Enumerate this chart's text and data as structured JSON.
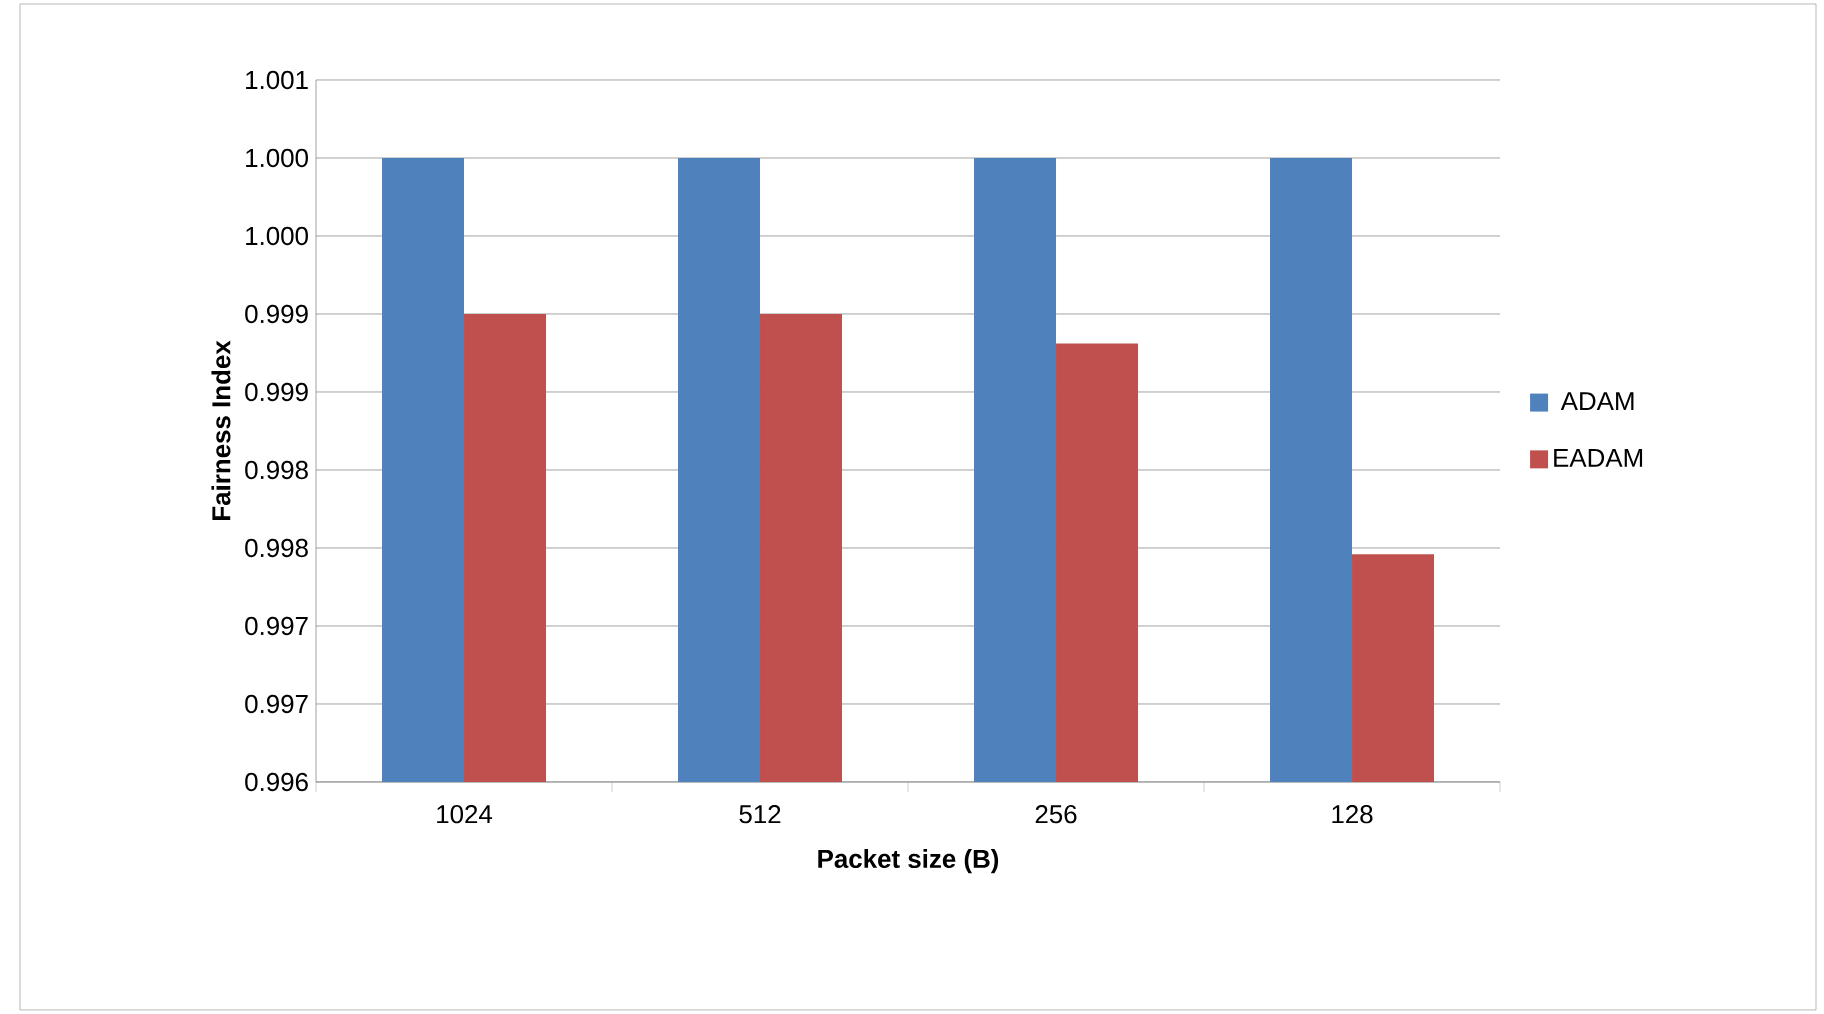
{
  "chart_data": {
    "type": "bar",
    "xlabel": "Packet size (B)",
    "ylabel": "Fairness Index",
    "categories": [
      "1024",
      "512",
      "256",
      "128"
    ],
    "series": [
      {
        "name": "ADAM",
        "color": "#4f81bd",
        "values": [
          1.0,
          1.0,
          1.0,
          1.0
        ]
      },
      {
        "name": "EADAM",
        "color": "#c0504d",
        "values": [
          0.999,
          0.999,
          0.99881,
          0.99746
        ]
      }
    ],
    "ylim": [
      0.996,
      1.0005
    ],
    "yticks": [
      {
        "value": 0.996,
        "label": "0.996"
      },
      {
        "value": 0.9965,
        "label": "0.997"
      },
      {
        "value": 0.997,
        "label": "0.997"
      },
      {
        "value": 0.9975,
        "label": "0.998"
      },
      {
        "value": 0.998,
        "label": "0.998"
      },
      {
        "value": 0.9985,
        "label": "0.999"
      },
      {
        "value": 0.999,
        "label": "0.999"
      },
      {
        "value": 0.9995,
        "label": "1.000"
      },
      {
        "value": 1.0,
        "label": "1.000"
      },
      {
        "value": 1.0005,
        "label": "1.001"
      }
    ],
    "grid": "y",
    "legend": "right"
  }
}
